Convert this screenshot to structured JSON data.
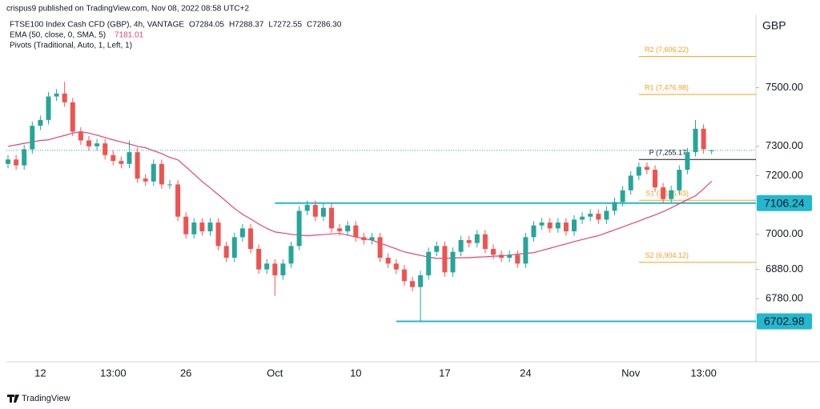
{
  "chart_data": {
    "type": "candlestick",
    "publisher": "crispus9 published on TradingView.com, Nov 08, 2022 08:58 UTC+2",
    "symbol": "FTSE100 Index Cash CFD (GBP), 4h, VANTAGE",
    "ohlc_legend": [
      "O7284.05",
      "H7288.37",
      "L7272.55",
      "C7286.30"
    ],
    "pivot_title": "Pivots (Traditional, Auto, 1, Left, 1)",
    "currency": "GBP",
    "brand": "TradingView",
    "up_color": "#26a69a",
    "down_color": "#ef5350",
    "categories": [
      null,
      null,
      null,
      null,
      "12",
      null,
      null,
      null,
      null,
      null,
      null,
      null,
      null,
      "13:00",
      null,
      null,
      null,
      null,
      null,
      null,
      null,
      null,
      "26",
      null,
      null,
      null,
      null,
      null,
      null,
      null,
      null,
      null,
      null,
      "Oct",
      null,
      null,
      null,
      null,
      null,
      null,
      null,
      null,
      null,
      "10",
      null,
      null,
      null,
      null,
      null,
      null,
      null,
      null,
      null,
      null,
      "17",
      null,
      null,
      null,
      null,
      null,
      null,
      null,
      null,
      null,
      "24",
      null,
      null,
      null,
      null,
      null,
      null,
      null,
      null,
      null,
      null,
      null,
      null,
      "Nov",
      null,
      null,
      null,
      null,
      null,
      null,
      null,
      null,
      "13:00",
      null
    ],
    "open": [
      7240,
      7255,
      7235,
      7290,
      7370,
      7390,
      7470,
      7480,
      7450,
      7350,
      7320,
      7300,
      7310,
      7270,
      7250,
      7240,
      7280,
      7190,
      7180,
      7240,
      7170,
      7170,
      7060,
      7000,
      7040,
      7010,
      7040,
      6960,
      6920,
      6990,
      7020,
      6950,
      6880,
      6900,
      6860,
      6900,
      6960,
      7080,
      7100,
      7060,
      7090,
      7020,
      7010,
      7030,
      6990,
      6980,
      6990,
      6920,
      6900,
      6880,
      6840,
      6820,
      6860,
      6940,
      6960,
      6870,
      6940,
      6980,
      6970,
      7000,
      6950,
      6930,
      6920,
      6930,
      6900,
      6990,
      7030,
      7040,
      7020,
      7040,
      7010,
      7050,
      7060,
      7070,
      7050,
      7080,
      7110,
      7150,
      7200,
      7230,
      7220,
      7160,
      7120,
      7150,
      7220,
      7280,
      7360,
      7284.05
    ],
    "high": [
      7270,
      7270,
      7305,
      7385,
      7405,
      7485,
      7495,
      7520,
      7465,
      7365,
      7335,
      7325,
      7325,
      7285,
      7265,
      7320,
      7295,
      7205,
      7255,
      7255,
      7185,
      7185,
      7075,
      7055,
      7055,
      7055,
      7055,
      6975,
      7005,
      7035,
      7035,
      6965,
      6915,
      6915,
      6915,
      6975,
      7095,
      7115,
      7115,
      7105,
      7105,
      7035,
      7045,
      7045,
      7005,
      7005,
      7005,
      6935,
      6915,
      6895,
      6855,
      6875,
      6955,
      6975,
      6975,
      6955,
      6995,
      6995,
      7015,
      7015,
      6965,
      6945,
      6945,
      6945,
      7005,
      7045,
      7055,
      7055,
      7055,
      7055,
      7065,
      7075,
      7085,
      7085,
      7095,
      7125,
      7165,
      7215,
      7245,
      7245,
      7235,
      7175,
      7165,
      7235,
      7295,
      7390,
      7375,
      7288.37
    ],
    "low": [
      7225,
      7220,
      7220,
      7275,
      7355,
      7375,
      7455,
      7435,
      7335,
      7305,
      7285,
      7285,
      7255,
      7235,
      7225,
      7225,
      7175,
      7165,
      7165,
      7155,
      7155,
      7045,
      6985,
      6985,
      6995,
      6995,
      6945,
      6905,
      6905,
      6975,
      6935,
      6865,
      6865,
      6790,
      6845,
      6885,
      6945,
      7065,
      7045,
      7045,
      7005,
      6995,
      6995,
      6975,
      6965,
      6965,
      6905,
      6885,
      6865,
      6825,
      6805,
      6702.98,
      6845,
      6925,
      6855,
      6855,
      6925,
      6955,
      6955,
      6935,
      6915,
      6905,
      6905,
      6885,
      6885,
      6975,
      7015,
      7005,
      7005,
      6995,
      6995,
      7035,
      7045,
      7035,
      7035,
      7065,
      7095,
      7135,
      7185,
      7205,
      7145,
      7105,
      7105,
      7135,
      7205,
      7265,
      7275,
      7272.55
    ],
    "close": [
      7255,
      7235,
      7290,
      7370,
      7390,
      7470,
      7480,
      7450,
      7350,
      7320,
      7300,
      7310,
      7270,
      7250,
      7240,
      7280,
      7190,
      7180,
      7240,
      7170,
      7170,
      7060,
      7000,
      7040,
      7010,
      7040,
      6960,
      6920,
      6990,
      7020,
      6950,
      6880,
      6900,
      6860,
      6900,
      6960,
      7080,
      7100,
      7060,
      7090,
      7020,
      7010,
      7030,
      6990,
      6980,
      6990,
      6920,
      6900,
      6880,
      6840,
      6820,
      6860,
      6940,
      6960,
      6870,
      6940,
      6980,
      6970,
      7000,
      6950,
      6930,
      6920,
      6930,
      6900,
      6990,
      7030,
      7040,
      7020,
      7040,
      7010,
      7050,
      7060,
      7070,
      7050,
      7080,
      7110,
      7150,
      7200,
      7230,
      7220,
      7160,
      7120,
      7150,
      7220,
      7280,
      7360,
      7290,
      7286.3
    ],
    "ema": {
      "name": "EMA (50, close, 0, SMA, 5)",
      "color": "#e0457b",
      "values": [
        7300,
        7305,
        7310,
        7315,
        7320,
        7322,
        7330,
        7337,
        7345,
        7350,
        7345,
        7338,
        7330,
        7322,
        7315,
        7308,
        7300,
        7295,
        7285,
        7275,
        7262,
        7254,
        7230,
        7205,
        7180,
        7158,
        7135,
        7112,
        7088,
        7068,
        7052,
        7035,
        7020,
        7008,
        7004,
        7000,
        6997,
        6995,
        6997,
        6999,
        7001,
        7003,
        6997,
        6991,
        6985,
        6980,
        6970,
        6960,
        6950,
        6940,
        6934,
        6928,
        6922,
        6918,
        6918,
        6919,
        6920,
        6920,
        6922,
        6923,
        6925,
        6926,
        6929,
        6932,
        6935,
        6937,
        6945,
        6952,
        6960,
        6967,
        6975,
        6982,
        6989,
        6995,
        7005,
        7015,
        7025,
        7035,
        7045,
        7056,
        7066,
        7077,
        7090,
        7104,
        7118,
        7131,
        7155,
        7181.01
      ]
    },
    "levels": [
      {
        "value": 7106.24,
        "from_index": 33,
        "color": "#22b8cf"
      },
      {
        "value": 6702.98,
        "from_index": 48,
        "color": "#22b8cf"
      }
    ],
    "pivots": [
      {
        "value": 7606.22,
        "label": "R2 (7,606.22)",
        "color": "#f7a21b"
      },
      {
        "value": 7476.98,
        "label": "R1 (7,476.98)",
        "color": "#f7a21b"
      },
      {
        "value": 7255.17,
        "label": "P (7,255.17)",
        "color": "#131722"
      },
      {
        "value": 7115.93,
        "label": "S1 (7,115.93)",
        "color": "#f7a21b"
      },
      {
        "value": 6904.12,
        "label": "S2 (6,904.12)",
        "color": "#f7a21b"
      }
    ],
    "pivot_from_index": 78,
    "ylim": [
      6565,
      7750
    ],
    "yticks": [
      {
        "value": 7500,
        "label": "7500.00"
      },
      {
        "value": 7300,
        "label": "7300.00"
      },
      {
        "value": 7200,
        "label": "7200.00"
      },
      {
        "value": 7000,
        "label": "7000.00"
      },
      {
        "value": 6880,
        "label": "6880.00"
      },
      {
        "value": 6780,
        "label": "6780.00"
      }
    ],
    "grid": false
  }
}
